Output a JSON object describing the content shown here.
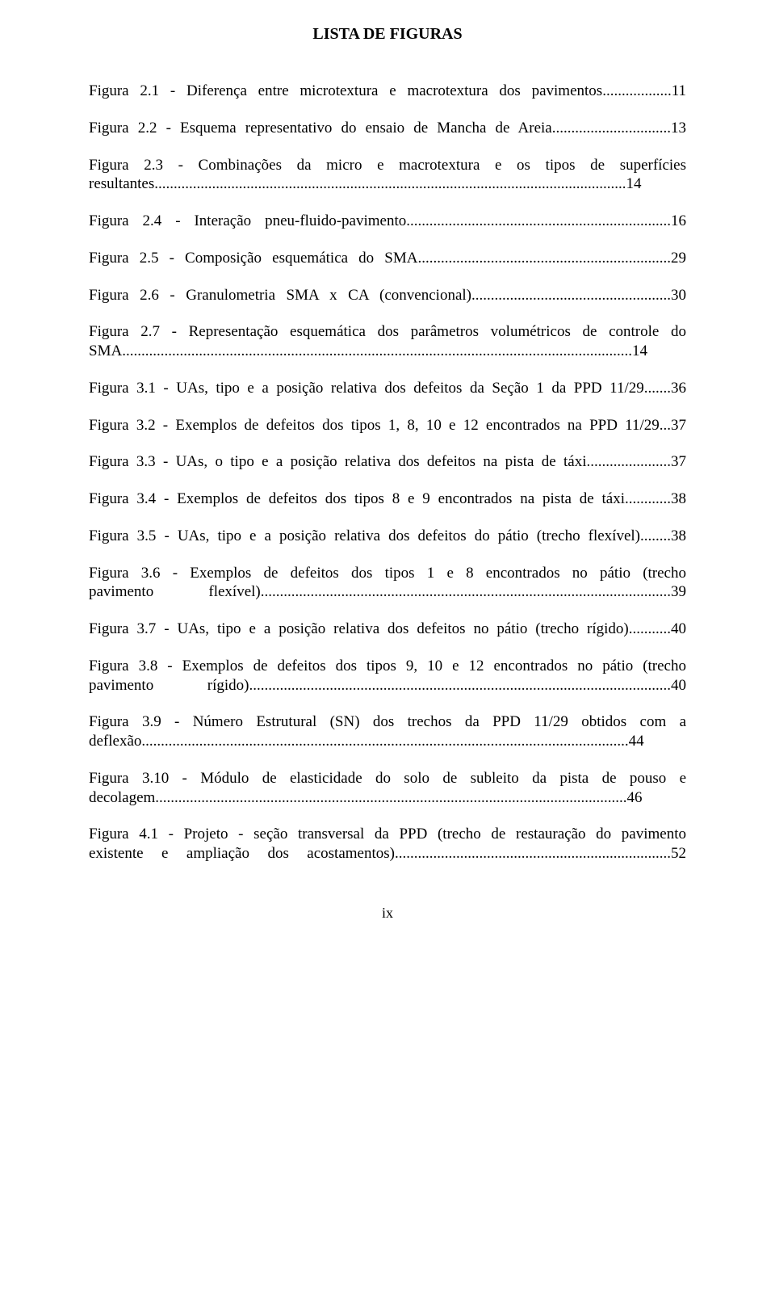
{
  "title": "LISTA DE FIGURAS",
  "entries": [
    {
      "text": "Figura 2.1 - Diferença entre microtextura e macrotextura dos pavimentos",
      "leader": "..................",
      "page": "11",
      "multi": false
    },
    {
      "text": "Figura 2.2 - Esquema representativo do ensaio de Mancha de Areia",
      "leader": "...............................",
      "page": "13",
      "multi": false
    },
    {
      "line1": "Figura 2.3 - Combinações da micro e macrotextura e os tipos de superfícies",
      "line2": "resultantes",
      "leader": "...........................................................................................................................",
      "page": "14",
      "multi": true
    },
    {
      "text": "Figura 2.4 - Interação pneu-fluido-pavimento",
      "leader": ".....................................................................",
      "page": "16",
      "multi": false
    },
    {
      "text": "Figura 2.5 - Composição esquemática do SMA",
      "leader": "..................................................................",
      "page": "29",
      "multi": false
    },
    {
      "text": "Figura 2.6 - Granulometria SMA x CA (convencional)",
      "leader": "....................................................",
      "page": "30",
      "multi": false
    },
    {
      "line1": "Figura 2.7 - Representação esquemática dos parâmetros volumétricos de controle do",
      "line2": "SMA",
      "leader": ".....................................................................................................................................",
      "page": "14",
      "multi": true
    },
    {
      "text": "Figura 3.1 - UAs, tipo e a posição relativa dos defeitos da Seção 1 da PPD 11/29",
      "leader": ".......",
      "page": "36",
      "multi": false
    },
    {
      "text": "Figura 3.2 - Exemplos de defeitos dos tipos 1, 8, 10 e 12 encontrados na PPD 11/29",
      "leader": "...",
      "page": "37",
      "multi": false
    },
    {
      "text": "Figura 3.3 - UAs, o tipo e a posição relativa dos defeitos na pista de táxi",
      "leader": "......................",
      "page": "37",
      "multi": false
    },
    {
      "text": "Figura 3.4 - Exemplos de defeitos dos tipos 8 e 9 encontrados na pista de táxi",
      "leader": "............",
      "page": "38",
      "multi": false
    },
    {
      "text": "Figura 3.5 - UAs, tipo e a posição relativa dos defeitos do pátio (trecho flexível)",
      "leader": "........",
      "page": "38",
      "multi": false
    },
    {
      "line1": "Figura 3.6 - Exemplos de defeitos dos tipos 1 e 8 encontrados no pátio (trecho",
      "line2": "pavimento  flexível)",
      "leader": "...........................................................................................................",
      "page": "39",
      "multi": true
    },
    {
      "text": "Figura 3.7 - UAs, tipo e a posição relativa dos defeitos no pátio (trecho rígido)",
      "leader": "...........",
      "page": "40",
      "multi": false
    },
    {
      "line1": "Figura 3.8 - Exemplos de defeitos dos tipos 9, 10 e 12 encontrados no pátio (trecho",
      "line2": "pavimento rígido)",
      "leader": "..............................................................................................................",
      "page": "40",
      "multi": true
    },
    {
      "line1": "Figura 3.9 - Número Estrutural (SN) dos trechos da PPD 11/29 obtidos com a",
      "line2": "deflexão",
      "leader": "...............................................................................................................................",
      "page": "44",
      "multi": true
    },
    {
      "line1": "Figura 3.10 - Módulo de elasticidade do solo de subleito da pista de pouso e",
      "line2": "decolagem",
      "leader": "...........................................................................................................................",
      "page": "46",
      "multi": true
    },
    {
      "line1": "Figura 4.1 - Projeto - seção transversal da PPD (trecho de restauração do pavimento",
      "line2": "existente e ampliação dos acostamentos)",
      "leader": "........................................................................",
      "page": "52",
      "multi": true
    }
  ],
  "pagenum": "ix"
}
